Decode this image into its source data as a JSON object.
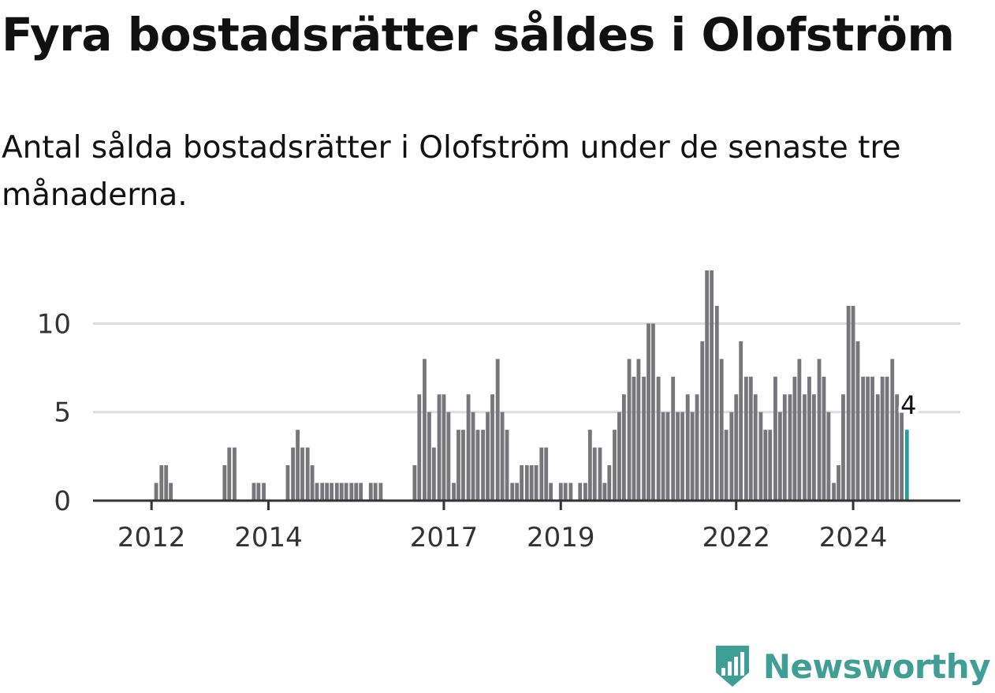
{
  "title": "Fyra bostadsrätter såldes i Olofström",
  "subtitle": "Antal sålda bostadsrätter i Olofström under de senaste tre månaderna.",
  "brand": {
    "name": "Newsworthy",
    "color": "#3f9e96"
  },
  "chart_data": {
    "type": "bar",
    "ylim": [
      0,
      13
    ],
    "y_ticks": [
      0,
      5,
      10
    ],
    "x_range": [
      2011.0,
      2025.833
    ],
    "x_ticks": [
      2012,
      2014,
      2017,
      2019,
      2022,
      2024
    ],
    "grid": true,
    "bar_color": "#77767b",
    "highlight_color": "#2a9d96",
    "highlight_label": "4",
    "bars": [
      {
        "x": 2012.08,
        "y": 1
      },
      {
        "x": 2012.17,
        "y": 2
      },
      {
        "x": 2012.25,
        "y": 2
      },
      {
        "x": 2012.33,
        "y": 1
      },
      {
        "x": 2013.25,
        "y": 2
      },
      {
        "x": 2013.33,
        "y": 3
      },
      {
        "x": 2013.42,
        "y": 3
      },
      {
        "x": 2013.75,
        "y": 1
      },
      {
        "x": 2013.83,
        "y": 1
      },
      {
        "x": 2013.92,
        "y": 1
      },
      {
        "x": 2014.33,
        "y": 2
      },
      {
        "x": 2014.42,
        "y": 3
      },
      {
        "x": 2014.5,
        "y": 4
      },
      {
        "x": 2014.58,
        "y": 3
      },
      {
        "x": 2014.67,
        "y": 3
      },
      {
        "x": 2014.75,
        "y": 2
      },
      {
        "x": 2014.83,
        "y": 1
      },
      {
        "x": 2014.92,
        "y": 1
      },
      {
        "x": 2015.0,
        "y": 1
      },
      {
        "x": 2015.08,
        "y": 1
      },
      {
        "x": 2015.17,
        "y": 1
      },
      {
        "x": 2015.25,
        "y": 1
      },
      {
        "x": 2015.33,
        "y": 1
      },
      {
        "x": 2015.42,
        "y": 1
      },
      {
        "x": 2015.5,
        "y": 1
      },
      {
        "x": 2015.58,
        "y": 1
      },
      {
        "x": 2015.75,
        "y": 1
      },
      {
        "x": 2015.83,
        "y": 1
      },
      {
        "x": 2015.92,
        "y": 1
      },
      {
        "x": 2016.5,
        "y": 2
      },
      {
        "x": 2016.58,
        "y": 6
      },
      {
        "x": 2016.67,
        "y": 8
      },
      {
        "x": 2016.75,
        "y": 5
      },
      {
        "x": 2016.83,
        "y": 3
      },
      {
        "x": 2016.92,
        "y": 6
      },
      {
        "x": 2017.0,
        "y": 6
      },
      {
        "x": 2017.08,
        "y": 5
      },
      {
        "x": 2017.17,
        "y": 1
      },
      {
        "x": 2017.25,
        "y": 4
      },
      {
        "x": 2017.33,
        "y": 4
      },
      {
        "x": 2017.42,
        "y": 6
      },
      {
        "x": 2017.5,
        "y": 5
      },
      {
        "x": 2017.58,
        "y": 4
      },
      {
        "x": 2017.67,
        "y": 4
      },
      {
        "x": 2017.75,
        "y": 5
      },
      {
        "x": 2017.83,
        "y": 6
      },
      {
        "x": 2017.92,
        "y": 8
      },
      {
        "x": 2018.0,
        "y": 5
      },
      {
        "x": 2018.08,
        "y": 4
      },
      {
        "x": 2018.17,
        "y": 1
      },
      {
        "x": 2018.25,
        "y": 1
      },
      {
        "x": 2018.33,
        "y": 2
      },
      {
        "x": 2018.42,
        "y": 2
      },
      {
        "x": 2018.5,
        "y": 2
      },
      {
        "x": 2018.58,
        "y": 2
      },
      {
        "x": 2018.67,
        "y": 3
      },
      {
        "x": 2018.75,
        "y": 3
      },
      {
        "x": 2018.83,
        "y": 1
      },
      {
        "x": 2019.0,
        "y": 1
      },
      {
        "x": 2019.08,
        "y": 1
      },
      {
        "x": 2019.17,
        "y": 1
      },
      {
        "x": 2019.33,
        "y": 1
      },
      {
        "x": 2019.42,
        "y": 1
      },
      {
        "x": 2019.5,
        "y": 4
      },
      {
        "x": 2019.58,
        "y": 3
      },
      {
        "x": 2019.67,
        "y": 3
      },
      {
        "x": 2019.75,
        "y": 1
      },
      {
        "x": 2019.83,
        "y": 2
      },
      {
        "x": 2019.92,
        "y": 4
      },
      {
        "x": 2020.0,
        "y": 5
      },
      {
        "x": 2020.08,
        "y": 6
      },
      {
        "x": 2020.17,
        "y": 8
      },
      {
        "x": 2020.25,
        "y": 7
      },
      {
        "x": 2020.33,
        "y": 8
      },
      {
        "x": 2020.42,
        "y": 7
      },
      {
        "x": 2020.5,
        "y": 10
      },
      {
        "x": 2020.58,
        "y": 10
      },
      {
        "x": 2020.67,
        "y": 7
      },
      {
        "x": 2020.75,
        "y": 5
      },
      {
        "x": 2020.83,
        "y": 5
      },
      {
        "x": 2020.92,
        "y": 7
      },
      {
        "x": 2021.0,
        "y": 5
      },
      {
        "x": 2021.08,
        "y": 5
      },
      {
        "x": 2021.17,
        "y": 6
      },
      {
        "x": 2021.25,
        "y": 5
      },
      {
        "x": 2021.33,
        "y": 6
      },
      {
        "x": 2021.42,
        "y": 9
      },
      {
        "x": 2021.5,
        "y": 13
      },
      {
        "x": 2021.58,
        "y": 13
      },
      {
        "x": 2021.67,
        "y": 11
      },
      {
        "x": 2021.75,
        "y": 8
      },
      {
        "x": 2021.83,
        "y": 4
      },
      {
        "x": 2021.92,
        "y": 5
      },
      {
        "x": 2022.0,
        "y": 6
      },
      {
        "x": 2022.08,
        "y": 9
      },
      {
        "x": 2022.17,
        "y": 7
      },
      {
        "x": 2022.25,
        "y": 7
      },
      {
        "x": 2022.33,
        "y": 6
      },
      {
        "x": 2022.42,
        "y": 5
      },
      {
        "x": 2022.5,
        "y": 4
      },
      {
        "x": 2022.58,
        "y": 4
      },
      {
        "x": 2022.67,
        "y": 7
      },
      {
        "x": 2022.75,
        "y": 5
      },
      {
        "x": 2022.83,
        "y": 6
      },
      {
        "x": 2022.92,
        "y": 6
      },
      {
        "x": 2023.0,
        "y": 7
      },
      {
        "x": 2023.08,
        "y": 8
      },
      {
        "x": 2023.17,
        "y": 6
      },
      {
        "x": 2023.25,
        "y": 7
      },
      {
        "x": 2023.33,
        "y": 6
      },
      {
        "x": 2023.42,
        "y": 8
      },
      {
        "x": 2023.5,
        "y": 7
      },
      {
        "x": 2023.58,
        "y": 5
      },
      {
        "x": 2023.67,
        "y": 1
      },
      {
        "x": 2023.75,
        "y": 2
      },
      {
        "x": 2023.83,
        "y": 6
      },
      {
        "x": 2023.92,
        "y": 11
      },
      {
        "x": 2024.0,
        "y": 11
      },
      {
        "x": 2024.08,
        "y": 9
      },
      {
        "x": 2024.17,
        "y": 7
      },
      {
        "x": 2024.25,
        "y": 7
      },
      {
        "x": 2024.33,
        "y": 7
      },
      {
        "x": 2024.42,
        "y": 6
      },
      {
        "x": 2024.5,
        "y": 7
      },
      {
        "x": 2024.58,
        "y": 7
      },
      {
        "x": 2024.67,
        "y": 8
      },
      {
        "x": 2024.75,
        "y": 6
      },
      {
        "x": 2024.83,
        "y": 5
      },
      {
        "x": 2024.92,
        "y": 4,
        "highlight": true
      }
    ]
  }
}
